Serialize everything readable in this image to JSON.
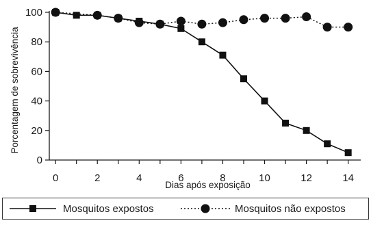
{
  "chart_data": {
    "type": "line",
    "title": "",
    "xlabel": "Dias após exposição",
    "ylabel": "Porcentagem de sobrevivência",
    "xlim": [
      -0.3,
      14.6
    ],
    "ylim": [
      0,
      100
    ],
    "x_ticks": [
      "0",
      "2",
      "4",
      "6",
      "8",
      "10",
      "12",
      "14"
    ],
    "y_ticks": [
      "0",
      "20",
      "40",
      "60",
      "80",
      "100"
    ],
    "grid": false,
    "legend_position": "bottom",
    "series": [
      {
        "name": "Mosquitos expostos",
        "marker": "square",
        "line_style": "solid",
        "color": "#111111",
        "x": [
          0,
          1,
          2,
          3,
          4,
          5,
          6,
          7,
          8,
          9,
          10,
          11,
          12,
          13,
          14
        ],
        "y": [
          100,
          98,
          98,
          96,
          94,
          92,
          89,
          80,
          71,
          55,
          40,
          25,
          20,
          11,
          5
        ]
      },
      {
        "name": "Mosquitos não expostos",
        "marker": "circle",
        "line_style": "dotted",
        "color": "#111111",
        "x": [
          0,
          2,
          3,
          4,
          5,
          6,
          7,
          8,
          9,
          10,
          11,
          12,
          13,
          14
        ],
        "y": [
          100,
          98,
          96,
          93,
          92,
          94,
          92,
          93,
          95,
          96,
          96,
          97,
          90,
          90
        ]
      }
    ]
  }
}
